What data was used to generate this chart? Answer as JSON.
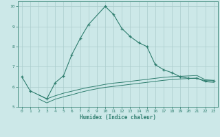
{
  "xlabel": "Humidex (Indice chaleur)",
  "x_values": [
    0,
    1,
    2,
    3,
    4,
    5,
    6,
    7,
    8,
    9,
    10,
    11,
    12,
    13,
    14,
    15,
    16,
    17,
    18,
    19,
    20,
    21,
    22,
    23
  ],
  "line1_y": [
    6.5,
    5.8,
    null,
    5.4,
    6.2,
    6.55,
    7.6,
    8.4,
    9.1,
    null,
    10.0,
    9.6,
    8.9,
    8.5,
    8.2,
    8.0,
    7.1,
    6.85,
    6.7,
    6.5,
    6.42,
    6.42,
    6.3,
    6.3
  ],
  "line2_y": [
    null,
    null,
    5.6,
    5.4,
    5.55,
    5.68,
    5.78,
    5.88,
    5.97,
    6.04,
    6.12,
    6.18,
    6.22,
    6.27,
    6.32,
    6.37,
    6.42,
    6.47,
    6.5,
    6.52,
    6.54,
    6.56,
    6.35,
    6.32
  ],
  "line3_y": [
    null,
    null,
    5.4,
    5.2,
    5.38,
    5.5,
    5.6,
    5.72,
    5.82,
    5.9,
    5.97,
    6.02,
    6.07,
    6.12,
    6.17,
    6.22,
    6.27,
    6.32,
    6.36,
    6.39,
    6.41,
    6.43,
    6.25,
    6.22
  ],
  "line_color": "#2e7d6e",
  "bg_color": "#cce8e8",
  "grid_color": "#aacccc",
  "ylim": [
    5.0,
    10.25
  ],
  "xlim": [
    -0.5,
    23.5
  ],
  "yticks": [
    5,
    6,
    7,
    8,
    9,
    10
  ],
  "xticks": [
    0,
    1,
    2,
    3,
    4,
    5,
    6,
    7,
    8,
    9,
    10,
    11,
    12,
    13,
    14,
    15,
    16,
    17,
    18,
    19,
    20,
    21,
    22,
    23
  ]
}
